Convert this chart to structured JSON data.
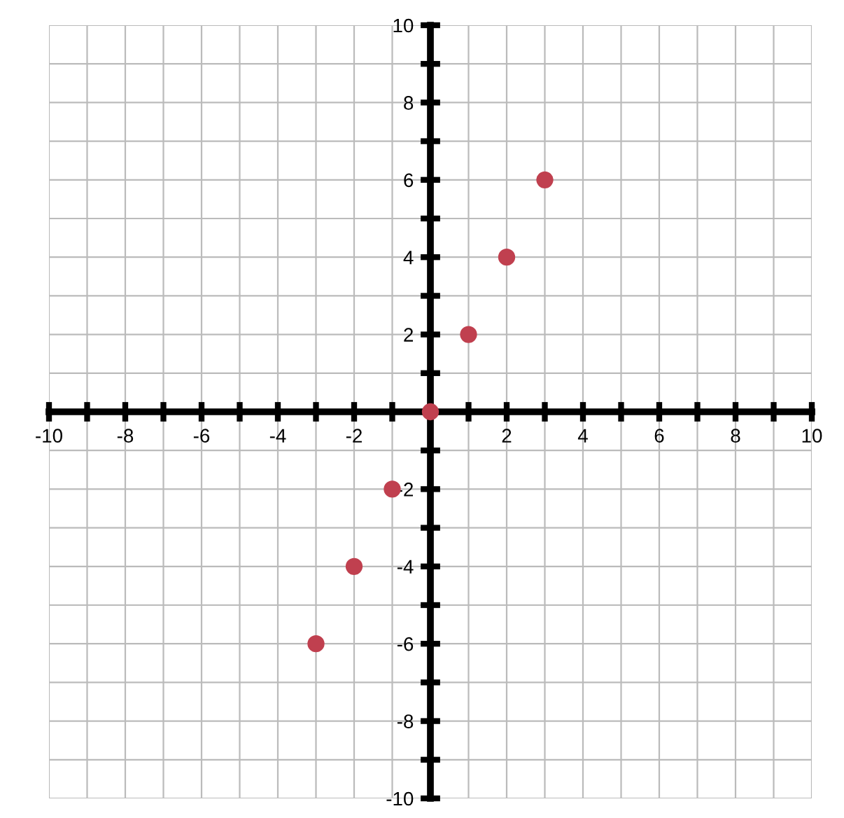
{
  "chart_data": {
    "type": "scatter",
    "x": [
      -3,
      -2,
      -1,
      0,
      1,
      2,
      3
    ],
    "series": [
      {
        "color": "#c0404f",
        "values": [
          -6,
          -4,
          -2,
          0,
          2,
          4,
          6
        ]
      }
    ],
    "xlim": [
      -10,
      10
    ],
    "ylim": [
      -10,
      10
    ],
    "xticks": [
      -10,
      {
        "value": -9,
        "label": null
      },
      -8,
      {
        "value": -7,
        "label": null
      },
      -6,
      {
        "value": -5,
        "label": null
      },
      -4,
      {
        "value": -3,
        "label": null
      },
      -2,
      {
        "value": -1,
        "label": null
      },
      {
        "value": 0,
        "label": null
      },
      {
        "value": 1,
        "label": null
      },
      2,
      {
        "value": 3,
        "label": null
      },
      4,
      {
        "value": 5,
        "label": null
      },
      6,
      {
        "value": 7,
        "label": null
      },
      8,
      {
        "value": 9,
        "label": null
      },
      10
    ],
    "yticks": [
      -10,
      {
        "value": -9,
        "label": null
      },
      -8,
      {
        "value": -7,
        "label": null
      },
      -6,
      {
        "value": -5,
        "label": null
      },
      -4,
      {
        "value": -3,
        "label": null
      },
      -2,
      {
        "value": -1,
        "label": null
      },
      {
        "value": 0,
        "label": null
      },
      {
        "value": 1,
        "label": null
      },
      2,
      {
        "value": 3,
        "label": null
      },
      4,
      {
        "value": 5,
        "label": null
      },
      6,
      {
        "value": 7,
        "label": null
      },
      8,
      {
        "value": 9,
        "label": null
      },
      10
    ],
    "grid": true,
    "marker": "circle"
  }
}
